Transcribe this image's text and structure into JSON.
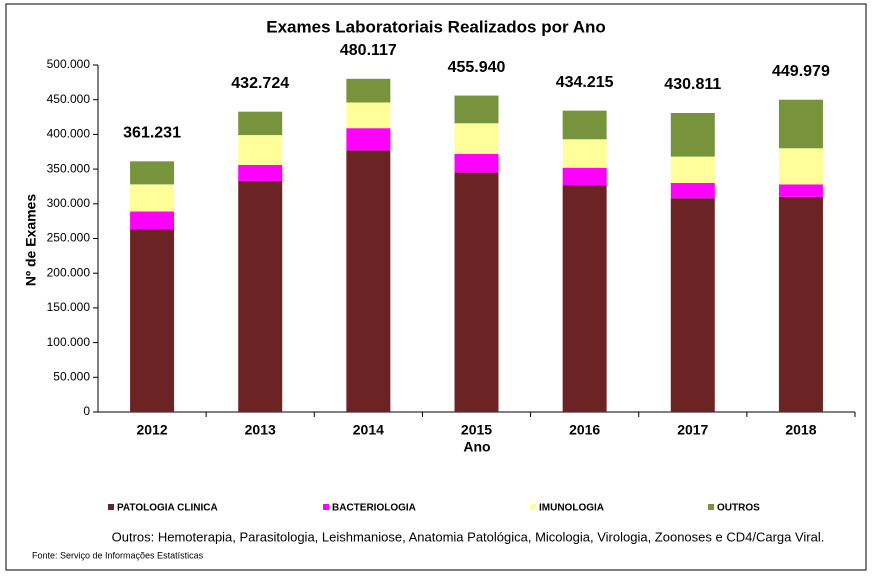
{
  "chart_data": {
    "type": "stacked_bar",
    "title": "Exames Laboratoriais Realizados por Ano",
    "x_label": "Ano",
    "y_label": "Nº de Exames",
    "categories": [
      "2012",
      "2013",
      "2014",
      "2015",
      "2016",
      "2017",
      "2018"
    ],
    "series": [
      {
        "name": "PATOLOGIA CLINICA",
        "color": "#6b2323",
        "values": [
          263000,
          333000,
          377000,
          345000,
          327000,
          308000,
          310000
        ]
      },
      {
        "name": "BACTERIOLOGIA",
        "color": "#ff00ff",
        "values": [
          26000,
          23000,
          32000,
          27000,
          25000,
          22000,
          18000
        ]
      },
      {
        "name": "IMUNOLOGIA",
        "color": "#ffff99",
        "values": [
          39000,
          43000,
          37000,
          44000,
          41000,
          38000,
          52000
        ]
      },
      {
        "name": "OUTROS",
        "color": "#77933c",
        "values": [
          33231,
          33724,
          34117,
          39940,
          41215,
          62811,
          69979
        ]
      }
    ],
    "totals": {
      "values": [
        361231,
        432724,
        480117,
        455940,
        434215,
        430811,
        449979
      ],
      "value_labels": [
        "361.231",
        "432.724",
        "480.117",
        "455.940",
        "434.215",
        "430.811",
        "449.979"
      ]
    },
    "ylim": [
      0,
      500000
    ],
    "yticks": [
      0,
      {
        "value": 50000,
        "label": "50.000"
      },
      {
        "value": 100000,
        "label": "100.000"
      },
      {
        "value": 150000,
        "label": "150.000"
      },
      {
        "value": 200000,
        "label": "200.000"
      },
      {
        "value": 250000,
        "label": "250.000"
      },
      {
        "value": 300000,
        "label": "300.000"
      },
      {
        "value": 350000,
        "label": "350.000"
      },
      {
        "value": 400000,
        "label": "400.000"
      },
      {
        "value": 450000,
        "label": "450.000"
      },
      {
        "value": 500000,
        "label": "500.000"
      }
    ],
    "note": "Outros: Hemoterapia, Parasitologia, Leishmaniose, Anatomia Patológica, Micologia, Virologia, Zoonoses e CD4/Carga Viral.",
    "source": "Fonte: Serviço de Informações Estatísticas"
  }
}
